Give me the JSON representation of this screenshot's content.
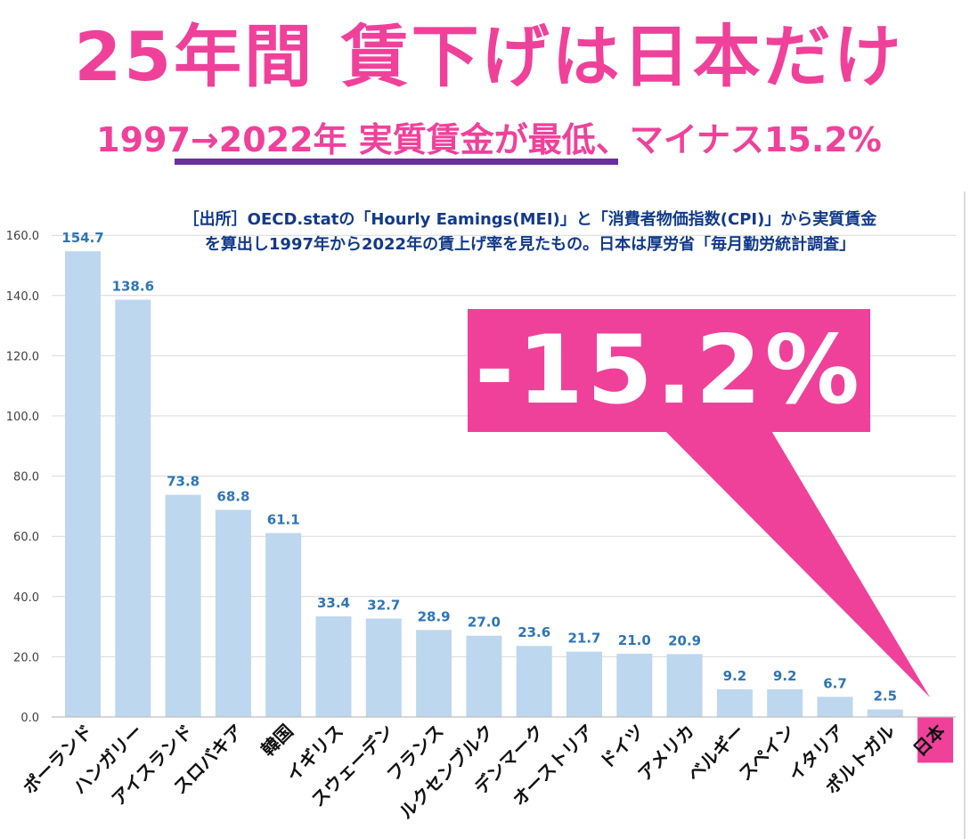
{
  "header": {
    "title": "25年間 賃下げは日本だけ",
    "subtitle": "1997→2022年 実質賃金が最低、マイナス15.2%"
  },
  "source_note": {
    "line1": "［出所］OECD.statの「Hourly Eamings(MEI)」と「消費者物価指数(CPI)」から実質賃金",
    "line2": "を算出し1997年から2022年の賃上げ率を見たもの。日本は厚労省「毎月勤労統計調査」"
  },
  "callout": {
    "text": "-15.2%"
  },
  "colors": {
    "accent": "#f0419a",
    "bar": "#bdd7ee",
    "label": "#2e75b6",
    "underline": "#6a2ea0",
    "source": "#123a8a"
  },
  "chart_data": {
    "type": "bar",
    "categories": [
      "ポーランド",
      "ハンガリー",
      "アイスランド",
      "スロバキア",
      "韓国",
      "イギリス",
      "スウェーデン",
      "フランス",
      "ルクセンブルク",
      "デンマーク",
      "オーストリア",
      "ドイツ",
      "アメリカ",
      "ベルギー",
      "スペイン",
      "イタリア",
      "ポルトガル",
      "日本"
    ],
    "values": [
      154.7,
      138.6,
      73.8,
      68.8,
      61.1,
      33.4,
      32.7,
      28.9,
      27.0,
      23.6,
      21.7,
      21.0,
      20.9,
      9.2,
      9.2,
      6.7,
      2.5,
      -15.2
    ],
    "data_labels": [
      "154.7",
      "138.6",
      "73.8",
      "68.8",
      "61.1",
      "33.4",
      "32.7",
      "28.9",
      "27.0",
      "23.6",
      "21.7",
      "21.0",
      "20.9",
      "9.2",
      "9.2",
      "6.7",
      "2.5",
      ""
    ],
    "y_ticks": [
      "0.0",
      "20.0",
      "40.0",
      "60.0",
      "80.0",
      "100.0",
      "120.0",
      "140.0",
      "160.0"
    ],
    "ylim": [
      -15.2,
      160
    ],
    "grid": true,
    "highlight_category": "日本"
  }
}
